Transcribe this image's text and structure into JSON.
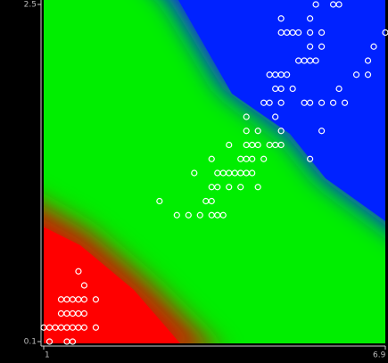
{
  "chart_data": {
    "type": "scatter",
    "xlim": [
      1,
      6.9
    ],
    "ylim": [
      0.1,
      2.5
    ],
    "xticks": [
      1,
      6.9
    ],
    "yticks": [
      0.1,
      2.5
    ],
    "series": [
      {
        "color": "#ffffff",
        "x": [
          1.1,
          1.4,
          1.5,
          1.0,
          1.1,
          1.2,
          1.3,
          1.4,
          1.5,
          1.6,
          1.7,
          1.9,
          1.3,
          1.4,
          1.5,
          1.6,
          1.7,
          1.3,
          1.4,
          1.5,
          1.6,
          1.7,
          1.9,
          1.7,
          1.6,
          3.3,
          3.5,
          3.7,
          3.9,
          4.0,
          4.1,
          3.0,
          3.8,
          3.9,
          3.9,
          4.0,
          4.2,
          4.4,
          4.7,
          3.6,
          4.0,
          4.1,
          4.2,
          4.3,
          4.4,
          4.5,
          4.6,
          3.9,
          4.4,
          4.5,
          4.6,
          4.8,
          4.2,
          4.5,
          4.6,
          4.7,
          4.9,
          5.0,
          5.1,
          4.5,
          4.7,
          5.1,
          4.5,
          5.0,
          5.6,
          5.8,
          4.8,
          4.9,
          5.1,
          5.5,
          5.6,
          5.8,
          6.0,
          6.2,
          5.0,
          5.1,
          5.3,
          6.1,
          4.9,
          5.0,
          5.1,
          5.2,
          6.4,
          6.6,
          5.4,
          5.5,
          5.6,
          5.7,
          6.6,
          5.6,
          5.8,
          6.7,
          5.1,
          5.2,
          5.3,
          5.4,
          5.6,
          5.8,
          6.9,
          5.1,
          5.6,
          5.7,
          6.0,
          6.1
        ],
        "values": [
          0.1,
          0.1,
          0.1,
          0.2,
          0.2,
          0.2,
          0.2,
          0.2,
          0.2,
          0.2,
          0.2,
          0.2,
          0.3,
          0.3,
          0.3,
          0.3,
          0.3,
          0.4,
          0.4,
          0.4,
          0.4,
          0.4,
          0.4,
          0.5,
          0.6,
          1.0,
          1.0,
          1.0,
          1.0,
          1.0,
          1.0,
          1.1,
          1.1,
          1.1,
          1.2,
          1.2,
          1.2,
          1.2,
          1.2,
          1.3,
          1.3,
          1.3,
          1.3,
          1.3,
          1.3,
          1.3,
          1.3,
          1.4,
          1.4,
          1.4,
          1.4,
          1.4,
          1.5,
          1.5,
          1.5,
          1.5,
          1.5,
          1.5,
          1.5,
          1.6,
          1.6,
          1.6,
          1.7,
          1.7,
          1.4,
          1.6,
          1.8,
          1.8,
          1.8,
          1.8,
          1.8,
          1.8,
          1.8,
          1.8,
          1.9,
          1.9,
          1.9,
          1.9,
          2.0,
          2.0,
          2.0,
          2.0,
          2.0,
          2.0,
          2.1,
          2.1,
          2.1,
          2.1,
          2.1,
          2.2,
          2.2,
          2.2,
          2.3,
          2.3,
          2.3,
          2.3,
          2.3,
          2.3,
          2.3,
          2.4,
          2.4,
          2.5,
          2.5,
          2.5
        ]
      }
    ]
  }
}
